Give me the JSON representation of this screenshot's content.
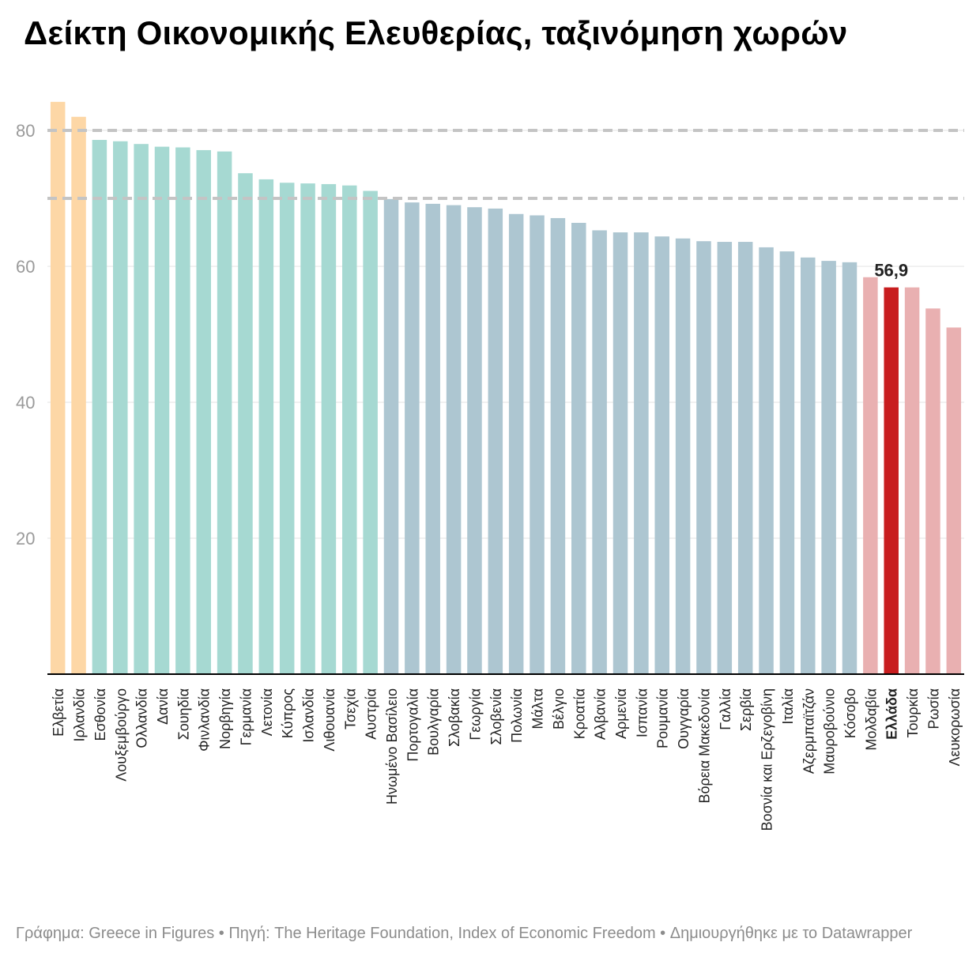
{
  "title": "Δείκτη Οικονομικής Ελευθερίας, ταξινόμηση χωρών",
  "footer": "Γράφημα: Greece in Figures • Πηγή: The Heritage Foundation, Index of Economic Freedom • Δημιουργήθηκε με το Datawrapper",
  "colors": {
    "free": "#fdd7a6",
    "mostly_free": "#a6d9d2",
    "moderately_free": "#adc6d1",
    "mostly_unfree": "#e9b0b1",
    "highlight": "#c81d1f",
    "grid": "#e3e3e3",
    "reference_line": "#c4c4c4",
    "axis_text": "#9a9a9a"
  },
  "chart_data": {
    "type": "bar",
    "title": "Δείκτη Οικονομικής Ελευθερίας, ταξινόμηση χωρών",
    "xlabel": "",
    "ylabel": "",
    "ylim": [
      0,
      84
    ],
    "y_ticks": [
      20,
      40,
      60,
      80
    ],
    "grid": true,
    "reference_lines": [
      80,
      70
    ],
    "highlight": {
      "category": "Ελλάδα",
      "label": "56,9"
    },
    "categories": [
      "Ελβετία",
      "Ιρλανδία",
      "Εσθονία",
      "Λουξεμβούργο",
      "Ολλανδία",
      "Δανία",
      "Σουηδία",
      "Φινλανδία",
      "Νορβηγία",
      "Γερμανία",
      "Λετονία",
      "Κύπρος",
      "Ισλανδία",
      "Λιθουανία",
      "Τσεχία",
      "Αυστρία",
      "Ηνωμένο Βασίλειο",
      "Πορτογαλία",
      "Βουλγαρία",
      "Σλοβακία",
      "Γεωργία",
      "Σλοβενία",
      "Πολωνία",
      "Μάλτα",
      "Βέλγιο",
      "Κροατία",
      "Αλβανία",
      "Αρμενία",
      "Ισπανία",
      "Ρουμανία",
      "Ουγγαρία",
      "Βόρεια Μακεδονία",
      "Γαλλία",
      "Σερβία",
      "Βοσνία και Ερζεγοβίνη",
      "Ιταλία",
      "Αζερμπαϊτζάν",
      "Μαυροβούνιο",
      "Κόσοβο",
      "Μολδαβία",
      "Ελλάδα",
      "Τουρκία",
      "Ρωσία",
      "Λευκορωσία"
    ],
    "values": [
      84.2,
      82.0,
      78.6,
      78.4,
      78.0,
      77.6,
      77.5,
      77.1,
      76.9,
      73.7,
      72.8,
      72.3,
      72.2,
      72.1,
      71.9,
      71.1,
      69.9,
      69.4,
      69.2,
      69.0,
      68.7,
      68.5,
      67.7,
      67.5,
      67.1,
      66.4,
      65.3,
      65.0,
      65.0,
      64.4,
      64.1,
      63.7,
      63.6,
      63.6,
      62.8,
      62.2,
      61.3,
      60.8,
      60.6,
      58.4,
      56.9,
      56.9,
      53.8,
      51.0
    ],
    "groups": [
      "free",
      "free",
      "mostly_free",
      "mostly_free",
      "mostly_free",
      "mostly_free",
      "mostly_free",
      "mostly_free",
      "mostly_free",
      "mostly_free",
      "mostly_free",
      "mostly_free",
      "mostly_free",
      "mostly_free",
      "mostly_free",
      "mostly_free",
      "moderately_free",
      "moderately_free",
      "moderately_free",
      "moderately_free",
      "moderately_free",
      "moderately_free",
      "moderately_free",
      "moderately_free",
      "moderately_free",
      "moderately_free",
      "moderately_free",
      "moderately_free",
      "moderately_free",
      "moderately_free",
      "moderately_free",
      "moderately_free",
      "moderately_free",
      "moderately_free",
      "moderately_free",
      "moderately_free",
      "moderately_free",
      "moderately_free",
      "moderately_free",
      "mostly_unfree",
      "highlight",
      "mostly_unfree",
      "mostly_unfree",
      "mostly_unfree"
    ]
  }
}
